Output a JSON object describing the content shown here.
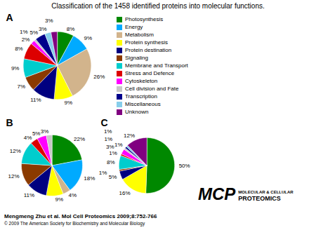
{
  "title": "Classification of the 1458 identified proteins into molecular functions.",
  "annotations": [
    "Mengmeng Zhu et al. Mol Cell Proteomics 2009;8:752-766",
    "© 2009 The American Society for Biochemistry and Molecular Biology",
    "MCP",
    "MOLECULAR & CELLULAR",
    "PROTEOMICS"
  ],
  "chart_data": [
    {
      "type": "pie",
      "title": "A",
      "categories": [
        "Photosynthesis",
        "Energy",
        "Metabolism",
        "Protein synthesis",
        "Protein destination",
        "Signaling",
        "Membrane and Transport",
        "Stress and Defence",
        "Cytoskeleton",
        "Cell division and Fate",
        "Transcription",
        "Miscellaneous",
        "Unknown"
      ],
      "values": [
        8,
        9,
        26,
        9,
        11,
        7,
        9,
        8,
        2,
        1,
        5,
        3,
        3
      ],
      "value_labels": [
        "8%",
        "9%",
        "26%",
        "9%",
        "11%",
        "7%",
        "9%",
        "8%",
        "2%",
        "1%",
        "5%",
        "3%",
        "3%"
      ],
      "colors": [
        "#008800",
        "#00AAFF",
        "#D2B48C",
        "#FFFF00",
        "#000080",
        "#8B3A00",
        "#00CDCD",
        "#DD0000",
        "#FF00FF",
        "#C8C8C8",
        "#00008B",
        "#87CEEB",
        "#800080"
      ],
      "data_labels": true,
      "legend": "right"
    },
    {
      "type": "pie",
      "title": "B",
      "categories": [
        "Photosynthesis",
        "Energy",
        "Metabolism",
        "Protein synthesis",
        "Protein destination",
        "Signaling",
        "Membrane and Transport",
        "Stress and Defence",
        "Cytoskeleton",
        "Cell division and Fate"
      ],
      "values": [
        22,
        18,
        4,
        9,
        11,
        12,
        12,
        4,
        5,
        3
      ],
      "value_labels": [
        "22%",
        "18%",
        "4%",
        "9%",
        "11%",
        "12%",
        "12%",
        "4%",
        "5%",
        "3%"
      ],
      "colors": [
        "#008800",
        "#00AAFF",
        "#D2B48C",
        "#FFFF00",
        "#000080",
        "#8B3A00",
        "#00CDCD",
        "#DD0000",
        "#FF00FF",
        "#C8C8C8"
      ],
      "data_labels": true
    },
    {
      "type": "pie",
      "title": "C",
      "categories": [
        "Photosynthesis",
        "Protein synthesis",
        "Protein destination",
        "Signaling",
        "Membrane and Transport",
        "Stress and Defence",
        "Cytoskeleton",
        "Cell division and Fate",
        "Transcription",
        "Miscellaneous",
        "Unknown"
      ],
      "values": [
        50,
        16,
        5,
        1,
        8,
        1,
        3,
        1,
        1,
        1,
        12
      ],
      "value_labels": [
        "50%",
        "16%",
        "5%",
        "1%",
        "8%",
        "1%",
        "3%",
        "1%",
        "1%",
        "1%",
        "12%"
      ],
      "colors": [
        "#008800",
        "#FFFF00",
        "#000080",
        "#8B3A00",
        "#00CDCD",
        "#DD0000",
        "#FF00FF",
        "#C8C8C8",
        "#00008B",
        "#87CEEB",
        "#800080"
      ],
      "data_labels": true
    }
  ]
}
